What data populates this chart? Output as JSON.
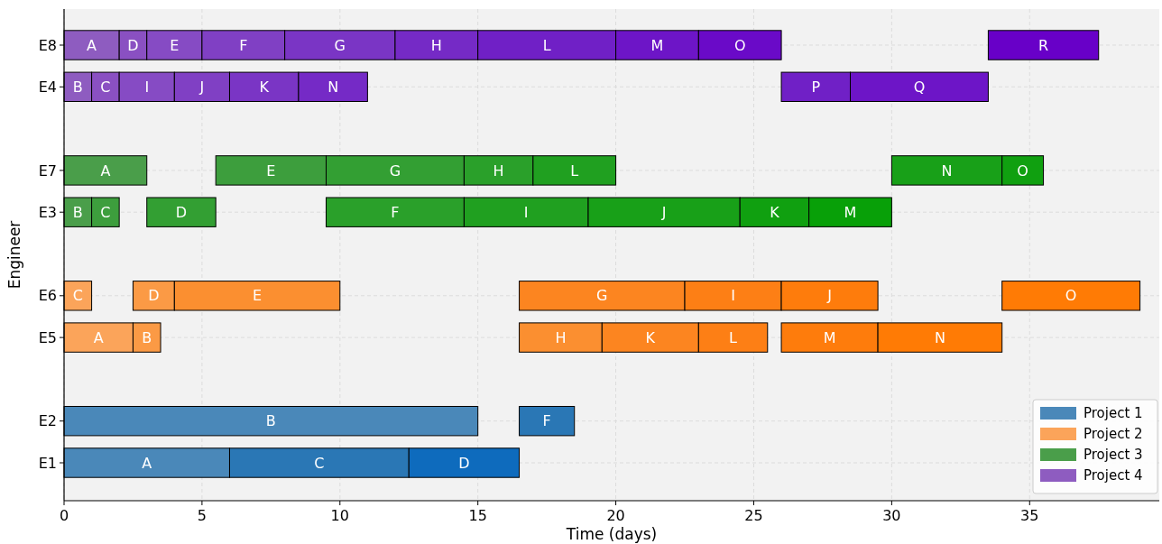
{
  "chart_data": {
    "type": "bar",
    "orientation": "horizontal",
    "xlabel": "Time (days)",
    "ylabel": "Engineer",
    "categories": [
      "E8",
      "E4",
      null,
      "E7",
      "E3",
      null,
      "E6",
      "E5",
      null,
      "E2",
      "E1"
    ],
    "xlim": [
      0,
      39.7
    ],
    "xticks": [
      0,
      5,
      10,
      15,
      20,
      25,
      30,
      35
    ],
    "grid": true,
    "legend": "bottom right",
    "series": [
      {
        "name": "Project 1",
        "color": "#4a88b9",
        "base": [
          null,
          null,
          null,
          null,
          null,
          null,
          null,
          null,
          null,
          0,
          0
        ],
        "values": [
          null,
          null,
          null,
          null,
          null,
          null,
          null,
          null,
          null,
          15,
          6
        ],
        "value_labels": [
          null,
          null,
          null,
          null,
          null,
          null,
          null,
          null,
          null,
          "B",
          "A"
        ]
      },
      {
        "color": "#2a77b5",
        "base": [
          null,
          null,
          null,
          null,
          null,
          null,
          null,
          null,
          null,
          16.5,
          6
        ],
        "values": [
          null,
          null,
          null,
          null,
          null,
          null,
          null,
          null,
          null,
          2,
          6.5
        ],
        "value_labels": [
          null,
          null,
          null,
          null,
          null,
          null,
          null,
          null,
          null,
          "F",
          "C"
        ]
      },
      {
        "color": "#0e6bbd",
        "base": [
          null,
          null,
          null,
          null,
          null,
          null,
          null,
          null,
          null,
          null,
          12.5
        ],
        "values": [
          null,
          null,
          null,
          null,
          null,
          null,
          null,
          null,
          null,
          null,
          4
        ],
        "value_labels": [
          null,
          null,
          null,
          null,
          null,
          null,
          null,
          null,
          null,
          null,
          "D"
        ]
      },
      {
        "name": "Project 2",
        "color": "#fba45a",
        "base": [
          null,
          null,
          null,
          null,
          null,
          null,
          0,
          0,
          null,
          null,
          null
        ],
        "values": [
          null,
          null,
          null,
          null,
          null,
          null,
          1,
          2.5,
          null,
          null,
          null
        ],
        "value_labels": [
          null,
          null,
          null,
          null,
          null,
          null,
          "C",
          "A",
          null,
          null,
          null
        ]
      },
      {
        "color": "#fb9a45",
        "base": [
          null,
          null,
          null,
          null,
          null,
          null,
          2.5,
          2.5,
          null,
          null,
          null
        ],
        "values": [
          null,
          null,
          null,
          null,
          null,
          null,
          1.5,
          1,
          null,
          null,
          null
        ],
        "value_labels": [
          null,
          null,
          null,
          null,
          null,
          null,
          "D",
          "B",
          null,
          null,
          null
        ]
      },
      {
        "color": "#fb8f30",
        "base": [
          null,
          null,
          null,
          null,
          null,
          null,
          4,
          16.5,
          null,
          null,
          null
        ],
        "values": [
          null,
          null,
          null,
          null,
          null,
          null,
          6,
          3,
          null,
          null,
          null
        ],
        "value_labels": [
          null,
          null,
          null,
          null,
          null,
          null,
          "E",
          "H",
          null,
          null,
          null
        ]
      },
      {
        "color": "#fc8520",
        "base": [
          null,
          null,
          null,
          null,
          null,
          null,
          16.5,
          19.5,
          null,
          null,
          null
        ],
        "values": [
          null,
          null,
          null,
          null,
          null,
          null,
          6,
          3.5,
          null,
          null,
          null
        ],
        "value_labels": [
          null,
          null,
          null,
          null,
          null,
          null,
          "G",
          "K",
          null,
          null,
          null
        ]
      },
      {
        "color": "#fd7f15",
        "base": [
          null,
          null,
          null,
          null,
          null,
          null,
          22.5,
          23,
          null,
          null,
          null
        ],
        "values": [
          null,
          null,
          null,
          null,
          null,
          null,
          3.5,
          2.5,
          null,
          null,
          null
        ],
        "value_labels": [
          null,
          null,
          null,
          null,
          null,
          null,
          "I",
          "L",
          null,
          null,
          null
        ]
      },
      {
        "color": "#fe7c0c",
        "base": [
          null,
          null,
          null,
          null,
          null,
          null,
          26,
          26,
          null,
          null,
          null
        ],
        "values": [
          null,
          null,
          null,
          null,
          null,
          null,
          3.5,
          3.5,
          null,
          null,
          null
        ],
        "value_labels": [
          null,
          null,
          null,
          null,
          null,
          null,
          "J",
          "M",
          null,
          null,
          null
        ]
      },
      {
        "color": "#ff7b05",
        "base": [
          null,
          null,
          null,
          null,
          null,
          null,
          34,
          29.5,
          null,
          null,
          null
        ],
        "values": [
          null,
          null,
          null,
          null,
          null,
          null,
          5,
          4.5,
          null,
          null,
          null
        ],
        "value_labels": [
          null,
          null,
          null,
          null,
          null,
          null,
          "O",
          "N",
          null,
          null,
          null
        ]
      },
      {
        "name": "Project 3",
        "color": "#4a9e4a",
        "base": [
          null,
          null,
          null,
          0,
          0,
          null,
          null,
          null,
          null,
          null,
          null
        ],
        "values": [
          null,
          null,
          null,
          3,
          1,
          null,
          null,
          null,
          null,
          null,
          null
        ],
        "value_labels": [
          null,
          null,
          null,
          "A",
          "B",
          null,
          null,
          null,
          null,
          null,
          null
        ]
      },
      {
        "color": "#3d9e3d",
        "base": [
          null,
          null,
          null,
          5.5,
          1,
          null,
          null,
          null,
          null,
          null,
          null
        ],
        "values": [
          null,
          null,
          null,
          4,
          1,
          null,
          null,
          null,
          null,
          null,
          null
        ],
        "value_labels": [
          null,
          null,
          null,
          "E",
          "C",
          null,
          null,
          null,
          null,
          null,
          null
        ]
      },
      {
        "color": "#339f33",
        "base": [
          null,
          null,
          null,
          9.5,
          3,
          null,
          null,
          null,
          null,
          null,
          null
        ],
        "values": [
          null,
          null,
          null,
          5,
          2.5,
          null,
          null,
          null,
          null,
          null,
          null
        ],
        "value_labels": [
          null,
          null,
          null,
          "G",
          "D",
          null,
          null,
          null,
          null,
          null,
          null
        ]
      },
      {
        "color": "#2aa02a",
        "base": [
          null,
          null,
          null,
          14.5,
          9.5,
          null,
          null,
          null,
          null,
          null,
          null
        ],
        "values": [
          null,
          null,
          null,
          2.5,
          5,
          null,
          null,
          null,
          null,
          null,
          null
        ],
        "value_labels": [
          null,
          null,
          null,
          "H",
          "F",
          null,
          null,
          null,
          null,
          null,
          null
        ]
      },
      {
        "color": "#20a020",
        "base": [
          null,
          null,
          null,
          17,
          14.5,
          null,
          null,
          null,
          null,
          null,
          null
        ],
        "values": [
          null,
          null,
          null,
          3,
          4.5,
          null,
          null,
          null,
          null,
          null,
          null
        ],
        "value_labels": [
          null,
          null,
          null,
          "L",
          "I",
          null,
          null,
          null,
          null,
          null,
          null
        ]
      },
      {
        "color": "#18a018",
        "base": [
          null,
          null,
          null,
          30,
          19,
          null,
          null,
          null,
          null,
          null,
          null
        ],
        "values": [
          null,
          null,
          null,
          4,
          5.5,
          null,
          null,
          null,
          null,
          null,
          null
        ],
        "value_labels": [
          null,
          null,
          null,
          "N",
          "J",
          null,
          null,
          null,
          null,
          null,
          null
        ]
      },
      {
        "color": "#10a010",
        "base": [
          null,
          null,
          null,
          34,
          24.5,
          null,
          null,
          null,
          null,
          null,
          null
        ],
        "values": [
          null,
          null,
          null,
          1.5,
          2.5,
          null,
          null,
          null,
          null,
          null,
          null
        ],
        "value_labels": [
          null,
          null,
          null,
          "O",
          "K",
          null,
          null,
          null,
          null,
          null,
          null
        ]
      },
      {
        "color": "#08a008",
        "base": [
          null,
          null,
          null,
          null,
          27,
          null,
          null,
          null,
          null,
          null,
          null
        ],
        "values": [
          null,
          null,
          null,
          null,
          3,
          null,
          null,
          null,
          null,
          null,
          null
        ],
        "value_labels": [
          null,
          null,
          null,
          null,
          "M",
          null,
          null,
          null,
          null,
          null,
          null
        ]
      },
      {
        "name": "Project 4",
        "color": "#8e5cc0",
        "base": [
          0,
          0,
          null,
          null,
          null,
          null,
          null,
          null,
          null,
          null,
          null
        ],
        "values": [
          2,
          1,
          null,
          null,
          null,
          null,
          null,
          null,
          null,
          null,
          null
        ],
        "value_labels": [
          "A",
          "B",
          null,
          null,
          null,
          null,
          null,
          null,
          null,
          null,
          null
        ]
      },
      {
        "color": "#8a50c2",
        "base": [
          2,
          1,
          null,
          null,
          null,
          null,
          null,
          null,
          null,
          null,
          null
        ],
        "values": [
          1,
          1,
          null,
          null,
          null,
          null,
          null,
          null,
          null,
          null,
          null
        ],
        "value_labels": [
          "D",
          "C",
          null,
          null,
          null,
          null,
          null,
          null,
          null,
          null,
          null
        ]
      },
      {
        "color": "#864bc4",
        "base": [
          3,
          2,
          null,
          null,
          null,
          null,
          null,
          null,
          null,
          null,
          null
        ],
        "values": [
          2,
          2,
          null,
          null,
          null,
          null,
          null,
          null,
          null,
          null,
          null
        ],
        "value_labels": [
          "E",
          "I",
          null,
          null,
          null,
          null,
          null,
          null,
          null,
          null,
          null
        ]
      },
      {
        "color": "#8040c4",
        "base": [
          5,
          4,
          null,
          null,
          null,
          null,
          null,
          null,
          null,
          null,
          null
        ],
        "values": [
          3,
          2,
          null,
          null,
          null,
          null,
          null,
          null,
          null,
          null,
          null
        ],
        "value_labels": [
          "F",
          "J",
          null,
          null,
          null,
          null,
          null,
          null,
          null,
          null,
          null
        ]
      },
      {
        "color": "#7a35c5",
        "base": [
          8,
          6,
          null,
          null,
          null,
          null,
          null,
          null,
          null,
          null,
          null
        ],
        "values": [
          4,
          2.5,
          null,
          null,
          null,
          null,
          null,
          null,
          null,
          null,
          null
        ],
        "value_labels": [
          "G",
          "K",
          null,
          null,
          null,
          null,
          null,
          null,
          null,
          null,
          null
        ]
      },
      {
        "color": "#752ac6",
        "base": [
          12,
          8.5,
          null,
          null,
          null,
          null,
          null,
          null,
          null,
          null,
          null
        ],
        "values": [
          3,
          2.5,
          null,
          null,
          null,
          null,
          null,
          null,
          null,
          null,
          null
        ],
        "value_labels": [
          "H",
          "N",
          null,
          null,
          null,
          null,
          null,
          null,
          null,
          null,
          null
        ]
      },
      {
        "color": "#7020c6",
        "base": [
          15,
          26,
          null,
          null,
          null,
          null,
          null,
          null,
          null,
          null,
          null
        ],
        "values": [
          5,
          2.5,
          null,
          null,
          null,
          null,
          null,
          null,
          null,
          null,
          null
        ],
        "value_labels": [
          "L",
          "P",
          null,
          null,
          null,
          null,
          null,
          null,
          null,
          null,
          null
        ]
      },
      {
        "color": "#6d15c7",
        "base": [
          20,
          28.5,
          null,
          null,
          null,
          null,
          null,
          null,
          null,
          null,
          null
        ],
        "values": [
          3,
          5,
          null,
          null,
          null,
          null,
          null,
          null,
          null,
          null,
          null
        ],
        "value_labels": [
          "M",
          "Q",
          null,
          null,
          null,
          null,
          null,
          null,
          null,
          null,
          null
        ]
      },
      {
        "color": "#6a0ac8",
        "base": [
          23,
          null,
          null,
          null,
          null,
          null,
          null,
          null,
          null,
          null,
          null
        ],
        "values": [
          3,
          null,
          null,
          null,
          null,
          null,
          null,
          null,
          null,
          null,
          null
        ],
        "value_labels": [
          "O",
          null,
          null,
          null,
          null,
          null,
          null,
          null,
          null,
          null,
          null
        ]
      },
      {
        "color": "#6800c8",
        "base": [
          33.5,
          null,
          null,
          null,
          null,
          null,
          null,
          null,
          null,
          null,
          null
        ],
        "values": [
          4,
          null,
          null,
          null,
          null,
          null,
          null,
          null,
          null,
          null,
          null
        ],
        "value_labels": [
          "R",
          null,
          null,
          null,
          null,
          null,
          null,
          null,
          null,
          null,
          null
        ]
      }
    ]
  }
}
